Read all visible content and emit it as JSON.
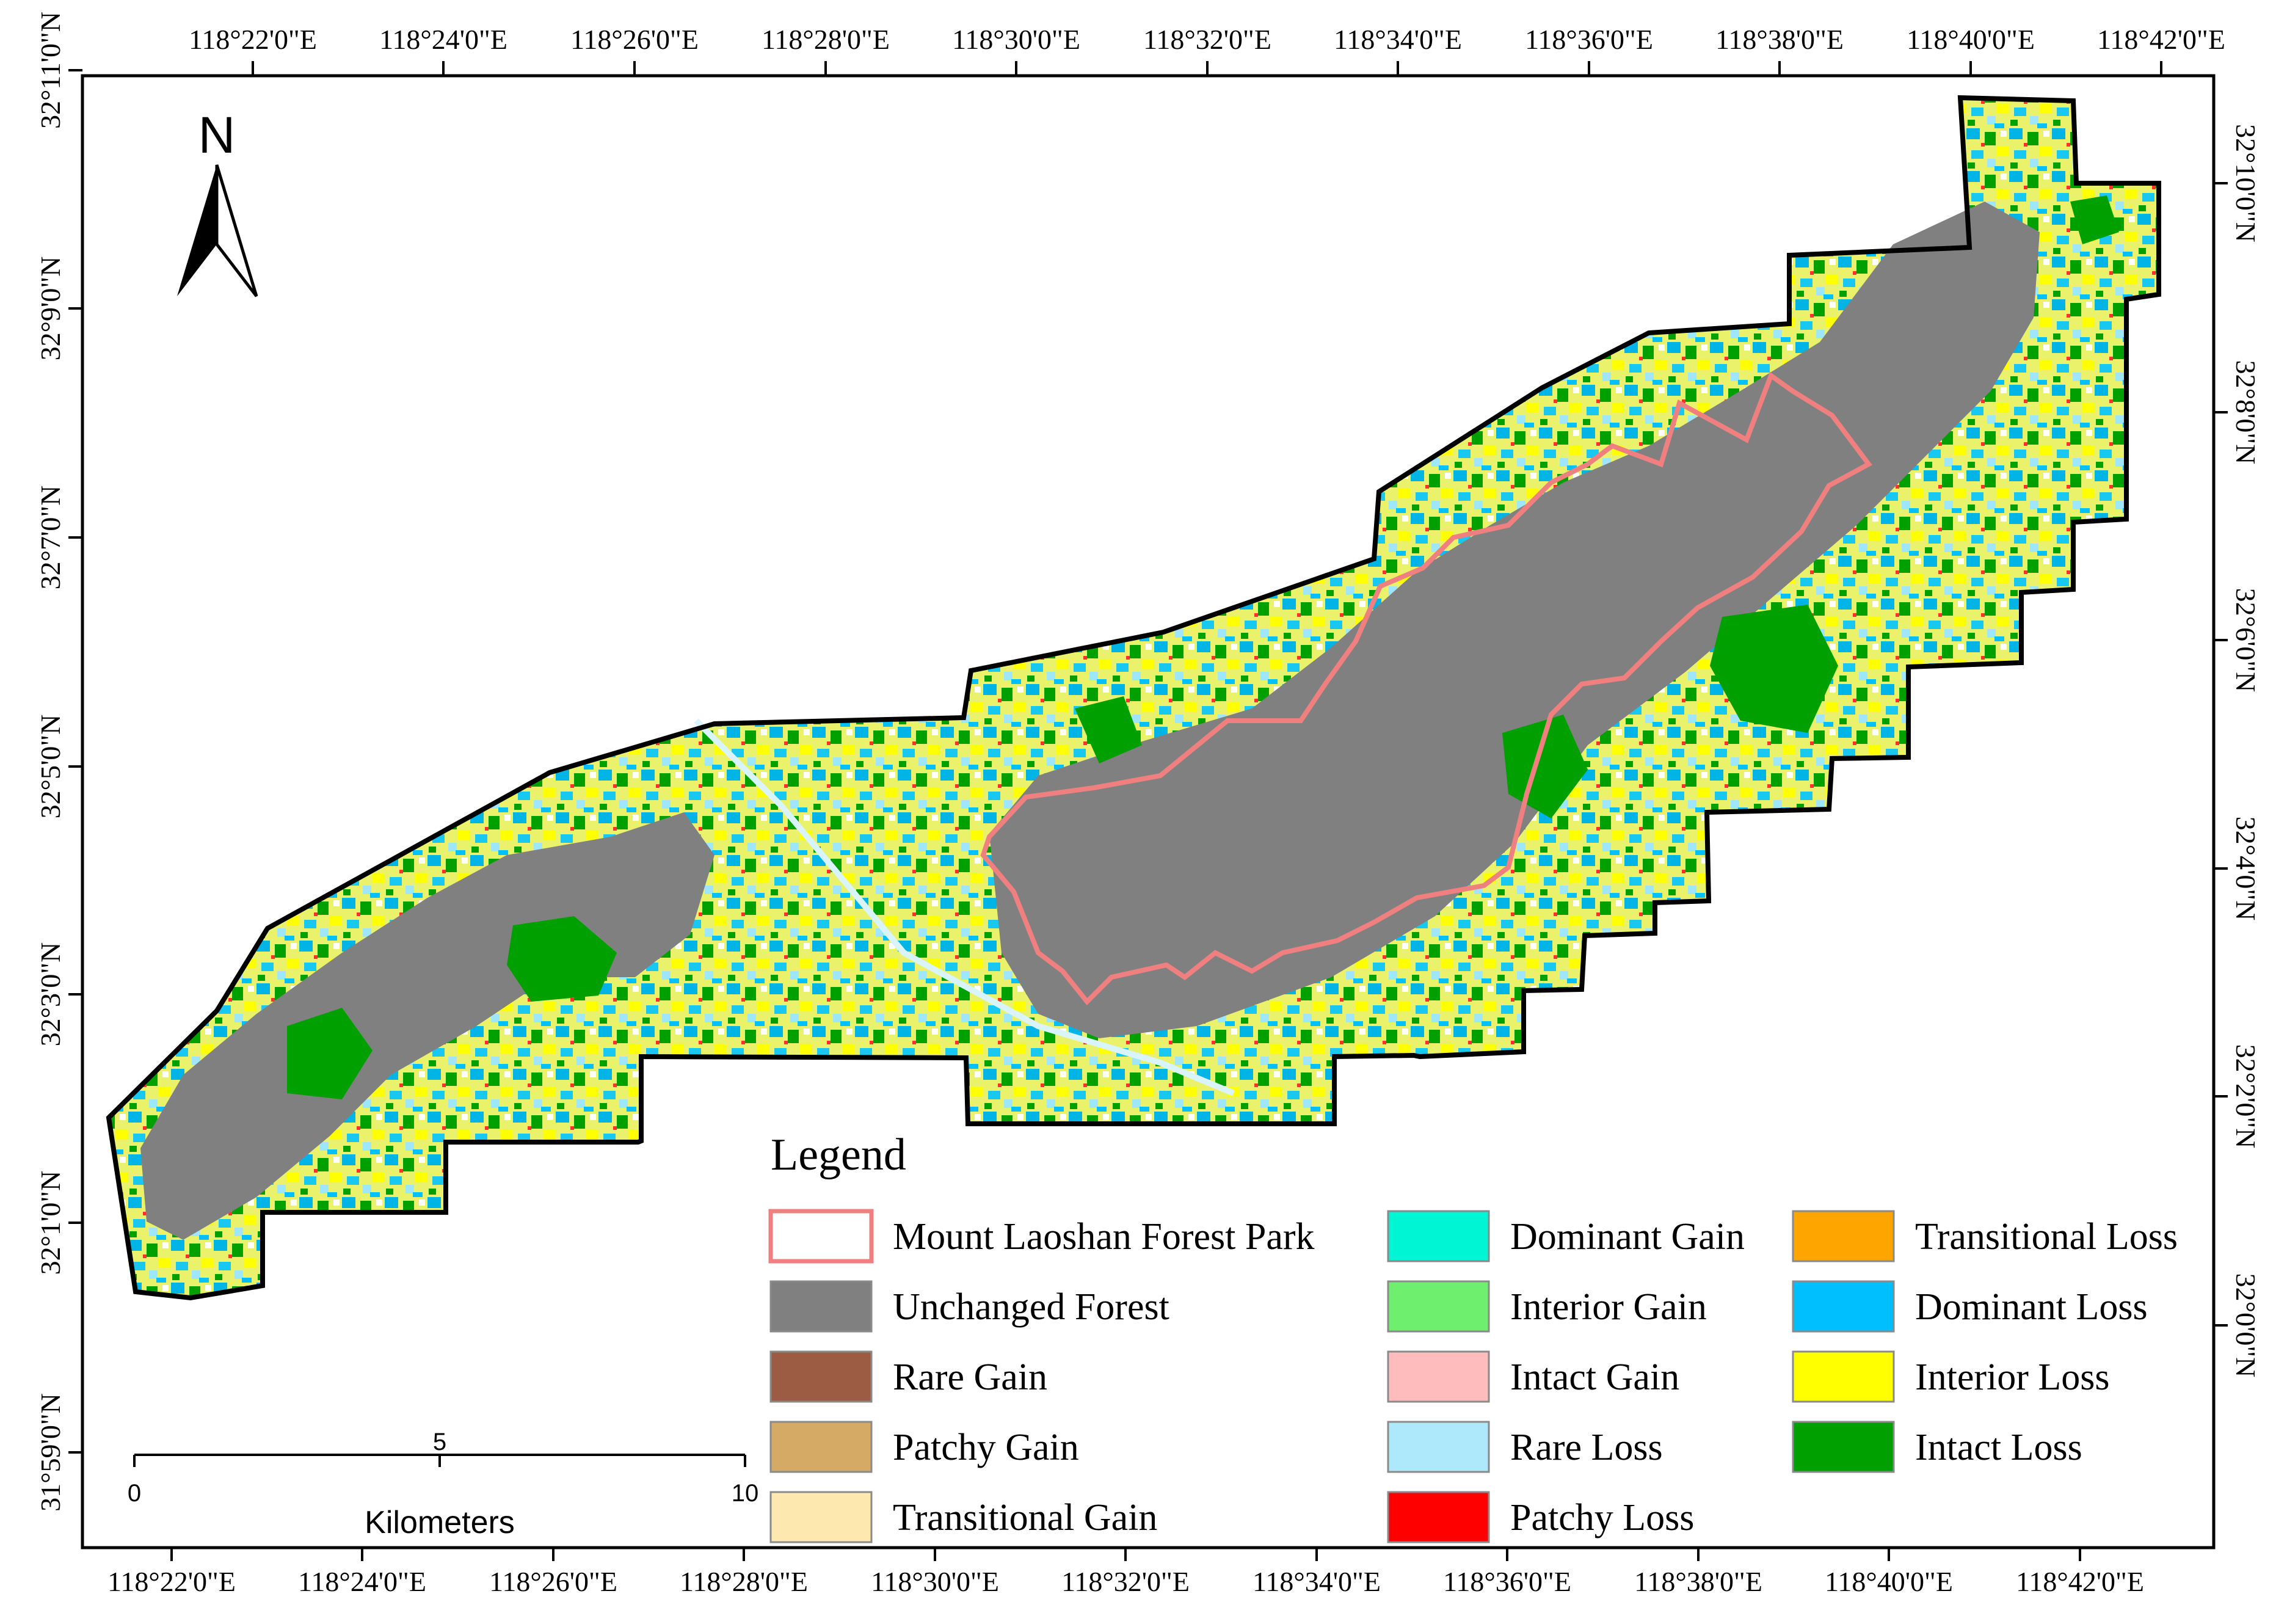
{
  "map": {
    "top_lon_ticks": [
      "118°22'0\"E",
      "118°24'0\"E",
      "118°26'0\"E",
      "118°28'0\"E",
      "118°30'0\"E",
      "118°32'0\"E",
      "118°34'0\"E",
      "118°36'0\"E",
      "118°38'0\"E",
      "118°40'0\"E",
      "118°42'0\"E"
    ],
    "bottom_lon_ticks": [
      "118°22'0\"E",
      "118°24'0\"E",
      "118°26'0\"E",
      "118°28'0\"E",
      "118°30'0\"E",
      "118°32'0\"E",
      "118°34'0\"E",
      "118°36'0\"E",
      "118°38'0\"E",
      "118°40'0\"E",
      "118°42'0\"E"
    ],
    "left_lat_ticks": [
      "32°11'0\"N",
      "32°9'0\"N",
      "32°7'0\"N",
      "32°5'0\"N",
      "32°3'0\"N",
      "32°1'0\"N",
      "31°59'0\"N"
    ],
    "right_lat_ticks": [
      "32°10'0\"N",
      "32°8'0\"N",
      "32°6'0\"N",
      "32°4'0\"N",
      "32°2'0\"N",
      "32°0'0\"N"
    ],
    "north_arrow_label": "N",
    "scale_bar": {
      "ticks": [
        "0",
        "5",
        "10"
      ],
      "unit": "Kilometers"
    }
  },
  "legend": {
    "title": "Legend",
    "items": [
      {
        "label": "Mount Laoshan Forest Park",
        "color": "#ffffff",
        "outline": "#f08080",
        "kind": "boundary"
      },
      {
        "label": "Unchanged Forest",
        "color": "#808080"
      },
      {
        "label": "Rare Gain",
        "color": "#9c5b43"
      },
      {
        "label": "Patchy Gain",
        "color": "#d4aa64"
      },
      {
        "label": "Transitional Gain",
        "color": "#fde9b0"
      },
      {
        "label": "Dominant Gain",
        "color": "#00f5d4"
      },
      {
        "label": "Interior Gain",
        "color": "#6ef06e"
      },
      {
        "label": "Intact Gain",
        "color": "#ffbcbc"
      },
      {
        "label": "Rare Loss",
        "color": "#aee8fb"
      },
      {
        "label": "Patchy Loss",
        "color": "#ff0000"
      },
      {
        "label": "Transitional Loss",
        "color": "#ffa500"
      },
      {
        "label": "Dominant Loss",
        "color": "#00bfff"
      },
      {
        "label": "Interior Loss",
        "color": "#ffff00"
      },
      {
        "label": "Intact Loss",
        "color": "#00a000"
      }
    ]
  }
}
